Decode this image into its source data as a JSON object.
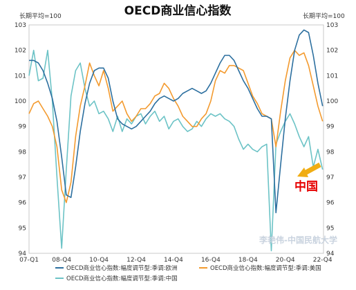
{
  "chart_data": {
    "type": "line",
    "title": "OECD商业信心指数",
    "left_unit": "长期平均=100",
    "right_unit": "长期平均=100",
    "ylim": [
      94,
      103
    ],
    "y_ticks": [
      "94",
      "95",
      "96",
      "97",
      "98",
      "99",
      "100",
      "101",
      "102",
      "103"
    ],
    "x_range": [
      2007.0,
      2022.8
    ],
    "x_tick_labels": [
      "07-Q1",
      "08-Q4",
      "10-Q4",
      "12-Q4",
      "14-Q4",
      "16-Q4",
      "18-Q4",
      "20-Q4",
      "22-Q4"
    ],
    "x_tick_positions": [
      2007.0,
      2008.75,
      2010.75,
      2012.75,
      2014.75,
      2016.75,
      2018.75,
      2020.75,
      2022.75
    ],
    "grid": false,
    "legend_position": "bottom",
    "annotation": "中国",
    "series": [
      {
        "name": "OECD商业信心指数:幅度调节型:季调:欧洲",
        "color": "#2c6f9f",
        "points": [
          [
            2007.0,
            101.6
          ],
          [
            2007.25,
            101.6
          ],
          [
            2007.5,
            101.5
          ],
          [
            2007.75,
            101.2
          ],
          [
            2008.0,
            100.7
          ],
          [
            2008.25,
            100.1
          ],
          [
            2008.5,
            99.2
          ],
          [
            2008.75,
            97.8
          ],
          [
            2009.0,
            96.3
          ],
          [
            2009.25,
            96.2
          ],
          [
            2009.5,
            97.4
          ],
          [
            2009.75,
            98.8
          ],
          [
            2010.0,
            99.9
          ],
          [
            2010.25,
            100.7
          ],
          [
            2010.5,
            101.2
          ],
          [
            2010.75,
            101.3
          ],
          [
            2011.0,
            101.3
          ],
          [
            2011.25,
            100.9
          ],
          [
            2011.5,
            100.0
          ],
          [
            2011.75,
            99.3
          ],
          [
            2012.0,
            99.1
          ],
          [
            2012.25,
            99.0
          ],
          [
            2012.5,
            98.9
          ],
          [
            2012.75,
            99.0
          ],
          [
            2013.0,
            99.2
          ],
          [
            2013.25,
            99.4
          ],
          [
            2013.5,
            99.6
          ],
          [
            2013.75,
            99.9
          ],
          [
            2014.0,
            100.1
          ],
          [
            2014.25,
            100.2
          ],
          [
            2014.5,
            100.1
          ],
          [
            2014.75,
            100.0
          ],
          [
            2015.0,
            100.1
          ],
          [
            2015.25,
            100.3
          ],
          [
            2015.5,
            100.4
          ],
          [
            2015.75,
            100.5
          ],
          [
            2016.0,
            100.4
          ],
          [
            2016.25,
            100.3
          ],
          [
            2016.5,
            100.4
          ],
          [
            2016.75,
            100.7
          ],
          [
            2017.0,
            101.1
          ],
          [
            2017.25,
            101.5
          ],
          [
            2017.5,
            101.8
          ],
          [
            2017.75,
            101.8
          ],
          [
            2018.0,
            101.6
          ],
          [
            2018.25,
            101.2
          ],
          [
            2018.5,
            100.8
          ],
          [
            2018.75,
            100.5
          ],
          [
            2019.0,
            100.1
          ],
          [
            2019.25,
            99.7
          ],
          [
            2019.5,
            99.4
          ],
          [
            2019.75,
            99.4
          ],
          [
            2020.0,
            99.3
          ],
          [
            2020.25,
            95.6
          ],
          [
            2020.5,
            97.5
          ],
          [
            2020.75,
            99.3
          ],
          [
            2021.0,
            100.8
          ],
          [
            2021.25,
            102.0
          ],
          [
            2021.5,
            102.6
          ],
          [
            2021.75,
            102.8
          ],
          [
            2022.0,
            102.7
          ],
          [
            2022.25,
            101.8
          ],
          [
            2022.5,
            100.7
          ],
          [
            2022.75,
            99.8
          ]
        ]
      },
      {
        "name": "OECD商业信心指数:幅度调节型:季调:美国",
        "color": "#f39a2e",
        "points": [
          [
            2007.0,
            99.5
          ],
          [
            2007.25,
            99.9
          ],
          [
            2007.5,
            100.0
          ],
          [
            2007.75,
            99.7
          ],
          [
            2008.0,
            99.4
          ],
          [
            2008.25,
            99.0
          ],
          [
            2008.5,
            98.2
          ],
          [
            2008.75,
            96.5
          ],
          [
            2009.0,
            96.0
          ],
          [
            2009.25,
            96.8
          ],
          [
            2009.5,
            98.6
          ],
          [
            2009.75,
            99.8
          ],
          [
            2010.0,
            100.6
          ],
          [
            2010.25,
            101.5
          ],
          [
            2010.5,
            101.0
          ],
          [
            2010.75,
            100.6
          ],
          [
            2011.0,
            101.2
          ],
          [
            2011.25,
            100.5
          ],
          [
            2011.5,
            99.6
          ],
          [
            2011.75,
            99.8
          ],
          [
            2012.0,
            100.0
          ],
          [
            2012.25,
            99.5
          ],
          [
            2012.5,
            99.2
          ],
          [
            2012.75,
            99.4
          ],
          [
            2013.0,
            99.7
          ],
          [
            2013.25,
            99.7
          ],
          [
            2013.5,
            99.9
          ],
          [
            2013.75,
            100.2
          ],
          [
            2014.0,
            100.3
          ],
          [
            2014.25,
            100.7
          ],
          [
            2014.5,
            100.5
          ],
          [
            2014.75,
            100.1
          ],
          [
            2015.0,
            99.8
          ],
          [
            2015.25,
            99.4
          ],
          [
            2015.5,
            99.2
          ],
          [
            2015.75,
            99.0
          ],
          [
            2016.0,
            99.0
          ],
          [
            2016.25,
            99.3
          ],
          [
            2016.5,
            99.5
          ],
          [
            2016.75,
            100.0
          ],
          [
            2017.0,
            100.8
          ],
          [
            2017.25,
            101.2
          ],
          [
            2017.5,
            101.1
          ],
          [
            2017.75,
            101.4
          ],
          [
            2018.0,
            101.4
          ],
          [
            2018.25,
            101.3
          ],
          [
            2018.5,
            101.2
          ],
          [
            2018.75,
            100.7
          ],
          [
            2019.0,
            100.2
          ],
          [
            2019.25,
            99.9
          ],
          [
            2019.5,
            99.5
          ],
          [
            2019.75,
            99.4
          ],
          [
            2020.0,
            99.3
          ],
          [
            2020.25,
            98.2
          ],
          [
            2020.5,
            99.6
          ],
          [
            2020.75,
            100.8
          ],
          [
            2021.0,
            101.7
          ],
          [
            2021.25,
            102.0
          ],
          [
            2021.5,
            101.8
          ],
          [
            2021.75,
            101.9
          ],
          [
            2022.0,
            101.4
          ],
          [
            2022.25,
            100.6
          ],
          [
            2022.5,
            99.8
          ],
          [
            2022.75,
            99.2
          ]
        ]
      },
      {
        "name": "OECD商业信心指数:幅度调节型:季调:中国",
        "color": "#6cc3c6",
        "points": [
          [
            2007.0,
            101.0
          ],
          [
            2007.25,
            102.0
          ],
          [
            2007.5,
            100.8
          ],
          [
            2007.75,
            100.9
          ],
          [
            2008.0,
            102.0
          ],
          [
            2008.25,
            100.0
          ],
          [
            2008.5,
            97.0
          ],
          [
            2008.75,
            94.2
          ],
          [
            2009.0,
            97.3
          ],
          [
            2009.25,
            100.2
          ],
          [
            2009.5,
            101.2
          ],
          [
            2009.75,
            101.5
          ],
          [
            2010.0,
            100.5
          ],
          [
            2010.25,
            99.8
          ],
          [
            2010.5,
            100.0
          ],
          [
            2010.75,
            99.5
          ],
          [
            2011.0,
            99.6
          ],
          [
            2011.25,
            99.3
          ],
          [
            2011.5,
            98.8
          ],
          [
            2011.75,
            99.4
          ],
          [
            2012.0,
            98.8
          ],
          [
            2012.25,
            99.3
          ],
          [
            2012.5,
            99.1
          ],
          [
            2012.75,
            99.4
          ],
          [
            2013.0,
            99.5
          ],
          [
            2013.25,
            99.1
          ],
          [
            2013.5,
            99.4
          ],
          [
            2013.75,
            99.6
          ],
          [
            2014.0,
            99.2
          ],
          [
            2014.25,
            99.4
          ],
          [
            2014.5,
            98.9
          ],
          [
            2014.75,
            99.2
          ],
          [
            2015.0,
            99.3
          ],
          [
            2015.25,
            99.0
          ],
          [
            2015.5,
            98.8
          ],
          [
            2015.75,
            98.9
          ],
          [
            2016.0,
            99.2
          ],
          [
            2016.25,
            99.0
          ],
          [
            2016.5,
            99.3
          ],
          [
            2016.75,
            99.5
          ],
          [
            2017.0,
            99.4
          ],
          [
            2017.25,
            99.5
          ],
          [
            2017.5,
            99.3
          ],
          [
            2017.75,
            99.2
          ],
          [
            2018.0,
            99.0
          ],
          [
            2018.25,
            98.5
          ],
          [
            2018.5,
            98.1
          ],
          [
            2018.75,
            98.3
          ],
          [
            2019.0,
            98.1
          ],
          [
            2019.25,
            98.0
          ],
          [
            2019.5,
            98.2
          ],
          [
            2019.75,
            98.3
          ],
          [
            2020.0,
            94.1
          ],
          [
            2020.25,
            98.3
          ],
          [
            2020.5,
            98.8
          ],
          [
            2020.75,
            99.2
          ],
          [
            2021.0,
            99.5
          ],
          [
            2021.25,
            99.1
          ],
          [
            2021.5,
            98.6
          ],
          [
            2021.75,
            98.2
          ],
          [
            2022.0,
            98.6
          ],
          [
            2022.25,
            97.4
          ],
          [
            2022.5,
            98.1
          ],
          [
            2022.75,
            97.3
          ]
        ]
      }
    ]
  },
  "watermark": "李艳伟-中国民航大学",
  "annotation_arrow_color": "#f0ad13"
}
